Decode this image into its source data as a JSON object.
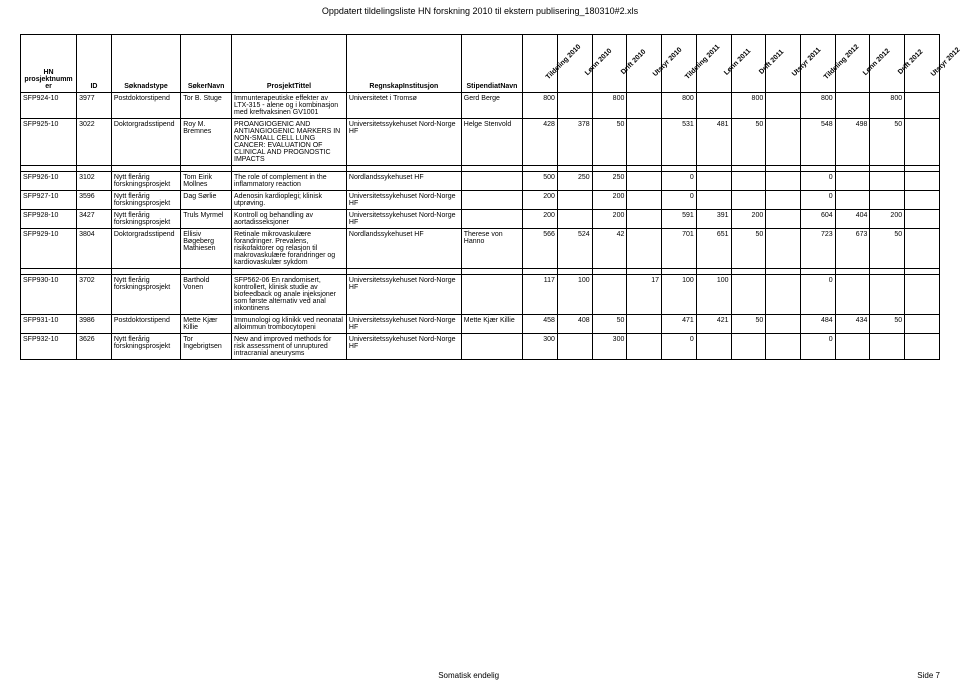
{
  "pageTitle": "Oppdatert tildelingsliste HN forskning 2010 til ekstern publisering_180310#2.xls",
  "footerLeft": "Somatisk endelig",
  "footerRight": "Side 7",
  "headers": {
    "hn": "HN prosjektnummer",
    "id": "ID",
    "type": "Søknadstype",
    "navn": "SøkerNavn",
    "tittel": "ProsjektTittel",
    "inst": "RegnskapInstitusjon",
    "stip": "StipendiatNavn",
    "cols": [
      "Tildeling 2010",
      "Lønn 2010",
      "Drift 2010",
      "Utstyr 2010",
      "Tildeling 2011",
      "Lønn 2011",
      "Drift 2011",
      "Utstyr 2011",
      "Tildeling 2012",
      "Lønn 2012",
      "Drift 2012",
      "Utstyr 2012"
    ]
  },
  "groups": [
    {
      "rows": [
        {
          "hn": "SFP924-10",
          "id": "3977",
          "type": "Postdoktorstipend",
          "navn": "Tor B. Stuge",
          "tittel": "Immunterapeutiske effekter av LTX-315 - alene og i kombinasjon med kreftvaksinen GV1001",
          "inst": "Universitetet i Tromsø",
          "stip": "Gerd Berge",
          "v": [
            "800",
            "",
            "800",
            "",
            "800",
            "",
            "800",
            "",
            "800",
            "",
            "800",
            ""
          ]
        },
        {
          "hn": "SFP925-10",
          "id": "3022",
          "type": "Doktorgradsstipend",
          "navn": "Roy M. Bremnes",
          "tittel": "PROANGIOGENIC AND ANTIANGIOGENIC MARKERS IN NON-SMALL CELL LUNG CANCER: EVALUATION OF CLINICAL AND PROGNOSTIC IMPACTS",
          "inst": "Universitetssykehuset Nord-Norge HF",
          "stip": "Helge Stenvold",
          "v": [
            "428",
            "378",
            "50",
            "",
            "531",
            "481",
            "50",
            "",
            "548",
            "498",
            "50",
            ""
          ]
        }
      ]
    },
    {
      "rows": [
        {
          "hn": "SFP926-10",
          "id": "3102",
          "type": "Nytt flerårig forskningsprosjekt",
          "navn": "Tom Eirik Mollnes",
          "tittel": "The role of complement in the inflammatory reaction",
          "inst": "Nordlandssykehuset HF",
          "stip": "",
          "v": [
            "500",
            "250",
            "250",
            "",
            "0",
            "",
            "",
            "",
            "0",
            "",
            "",
            ""
          ]
        },
        {
          "hn": "SFP927-10",
          "id": "3596",
          "type": "Nytt flerårig forskningsprosjekt",
          "navn": "Dag Sørlie",
          "tittel": "Adenosin kardioplegi; klinisk utprøving.",
          "inst": "Universitetssykehuset Nord-Norge HF",
          "stip": "",
          "v": [
            "200",
            "",
            "200",
            "",
            "0",
            "",
            "",
            "",
            "0",
            "",
            "",
            ""
          ]
        },
        {
          "hn": "SFP928-10",
          "id": "3427",
          "type": "Nytt flerårig forskningsprosjekt",
          "navn": "Truls Myrmel",
          "tittel": "Kontroll og behandling av aortadisseksjoner",
          "inst": "Universitetssykehuset Nord-Norge HF",
          "stip": "",
          "v": [
            "200",
            "",
            "200",
            "",
            "591",
            "391",
            "200",
            "",
            "604",
            "404",
            "200",
            ""
          ]
        },
        {
          "hn": "SFP929-10",
          "id": "3804",
          "type": "Doktorgradsstipend",
          "navn": "Ellisiv Bøgeberg Mathiesen",
          "tittel": "Retinale mikrovaskulære forandringer. Prevalens, risikofaktorer og relasjon til makrovaskulære forandringer og kardiovaskulær sykdom",
          "inst": "Nordlandssykehuset HF",
          "stip": "Therese von Hanno",
          "v": [
            "566",
            "524",
            "42",
            "",
            "701",
            "651",
            "50",
            "",
            "723",
            "673",
            "50",
            ""
          ]
        }
      ]
    },
    {
      "rows": [
        {
          "hn": "SFP930-10",
          "id": "3702",
          "type": "Nytt flerårig forskningsprosjekt",
          "navn": "Barthold Vonen",
          "tittel": "SFP562-06 En randomisert, kontrollert, klinisk studie av biofeedback og anale injeksjoner som første alternativ ved anal inkontinens",
          "inst": "Universitetssykehuset Nord-Norge HF",
          "stip": "",
          "v": [
            "117",
            "100",
            "",
            "17",
            "100",
            "100",
            "",
            "",
            "0",
            "",
            "",
            ""
          ]
        },
        {
          "hn": "SFP931-10",
          "id": "3986",
          "type": "Postdoktorstipend",
          "navn": "Mette Kjær Killie",
          "tittel": "Immunologi og klinikk ved neonatal alloimmun trombocytopeni",
          "inst": "Universitetssykehuset Nord-Norge HF",
          "stip": "Mette Kjær Killie",
          "v": [
            "458",
            "408",
            "50",
            "",
            "471",
            "421",
            "50",
            "",
            "484",
            "434",
            "50",
            ""
          ]
        },
        {
          "hn": "SFP932-10",
          "id": "3626",
          "type": "Nytt flerårig forskningsprosjekt",
          "navn": "Tor Ingebrigtsen",
          "tittel": "New and improved methods for risk assessment of unruptured intracranial aneurysms",
          "inst": "Universitetssykehuset Nord-Norge HF",
          "stip": "",
          "v": [
            "300",
            "",
            "300",
            "",
            "0",
            "",
            "",
            "",
            "0",
            "",
            "",
            ""
          ]
        }
      ]
    }
  ]
}
